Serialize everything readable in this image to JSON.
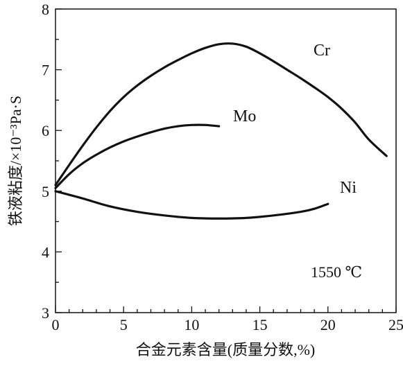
{
  "chart_data": {
    "type": "line",
    "xlabel": "合金元素含量(质量分数,%)",
    "ylabel": "铁液粘度/×10⁻³Pa·S",
    "xlim": [
      0,
      25
    ],
    "ylim": [
      3,
      8
    ],
    "xticks": [
      "0",
      "5",
      "10",
      "15",
      "20",
      "25"
    ],
    "yticks": [
      "3",
      "4",
      "5",
      "6",
      "7",
      "8"
    ],
    "grid": false,
    "annotation": "1550 ℃",
    "series": [
      {
        "name": "Cr",
        "x": [
          0,
          1,
          2,
          3,
          4,
          5,
          6,
          7,
          8,
          9,
          10,
          11,
          12,
          13,
          14,
          15,
          16,
          17,
          18,
          19,
          20,
          21,
          22,
          23,
          24.3
        ],
        "y": [
          5.1,
          5.43,
          5.75,
          6.05,
          6.32,
          6.55,
          6.74,
          6.9,
          7.04,
          7.16,
          7.27,
          7.36,
          7.42,
          7.43,
          7.38,
          7.27,
          7.14,
          7.0,
          6.86,
          6.71,
          6.55,
          6.36,
          6.13,
          5.85,
          5.58
        ]
      },
      {
        "name": "Mo",
        "x": [
          0,
          1,
          2,
          3,
          4,
          5,
          6,
          7,
          8,
          9,
          10,
          11,
          12
        ],
        "y": [
          5.05,
          5.28,
          5.46,
          5.6,
          5.72,
          5.82,
          5.9,
          5.97,
          6.03,
          6.07,
          6.09,
          6.09,
          6.07
        ]
      },
      {
        "name": "Ni",
        "x": [
          0,
          2,
          4,
          6,
          8,
          10,
          12,
          14,
          16,
          18,
          19,
          20
        ],
        "y": [
          5.0,
          4.88,
          4.75,
          4.66,
          4.6,
          4.56,
          4.55,
          4.56,
          4.6,
          4.66,
          4.71,
          4.79
        ]
      }
    ]
  }
}
